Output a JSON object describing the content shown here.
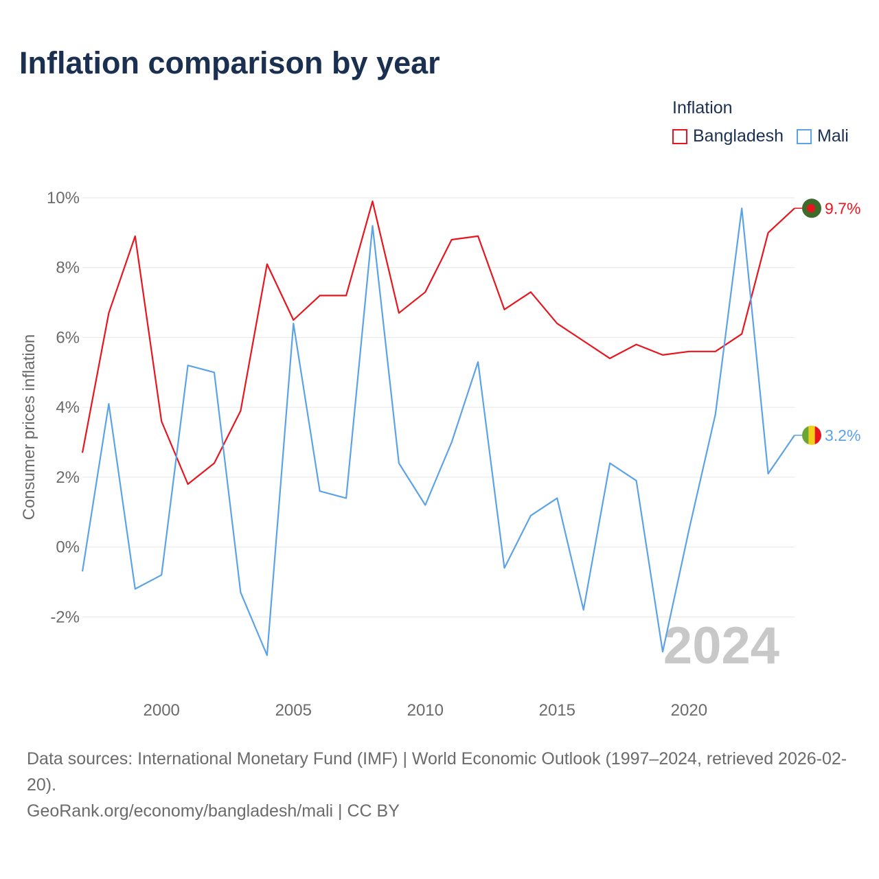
{
  "title": "Inflation comparison by year",
  "legend": {
    "title": "Inflation",
    "items": [
      {
        "label": "Bangladesh",
        "color": "#e8141e"
      },
      {
        "label": "Mali",
        "color": "#5ba3e6"
      }
    ]
  },
  "footer": {
    "sources": "Data sources: International Monetary Fund (IMF) | World Economic Outlook (1997–2024, retrieved 2026-02-20).",
    "credit": "GeoRank.org/economy/bangladesh/mali | CC BY"
  },
  "chart_data": {
    "type": "line",
    "title": "Inflation comparison by year",
    "ylabel": "Consumer prices inflation",
    "xlabel": "",
    "year_watermark": "2024",
    "x": [
      1997,
      1998,
      1999,
      2000,
      2001,
      2002,
      2003,
      2004,
      2005,
      2006,
      2007,
      2008,
      2009,
      2010,
      2011,
      2012,
      2013,
      2014,
      2015,
      2016,
      2017,
      2018,
      2019,
      2020,
      2021,
      2022,
      2023,
      2024
    ],
    "xlim": [
      1997,
      2024
    ],
    "ylim": [
      -4,
      10
    ],
    "xticks": [
      2000,
      2005,
      2010,
      2015,
      2020
    ],
    "xtick_labels": [
      "2000",
      "2005",
      "2010",
      "2015",
      "2020"
    ],
    "yticks": [
      -2,
      0,
      2,
      4,
      6,
      8,
      10
    ],
    "ytick_labels": [
      "-2%",
      "0%",
      "2%",
      "4%",
      "6%",
      "8%",
      "10%"
    ],
    "grid": true,
    "legend_position": "top-right",
    "series": [
      {
        "name": "Bangladesh",
        "color": "#e8141e",
        "values": [
          2.7,
          6.7,
          8.9,
          3.6,
          1.8,
          2.4,
          3.9,
          8.1,
          6.5,
          7.2,
          7.2,
          9.9,
          6.7,
          7.3,
          8.8,
          8.9,
          6.8,
          7.3,
          6.4,
          5.9,
          5.4,
          5.8,
          5.5,
          5.6,
          5.6,
          6.1,
          9.0,
          9.7
        ],
        "end_label": "9.7%",
        "flag": "bangladesh"
      },
      {
        "name": "Mali",
        "color": "#5ba3e6",
        "values": [
          -0.7,
          4.1,
          -1.2,
          -0.8,
          5.2,
          5.0,
          -1.3,
          -3.1,
          6.4,
          1.6,
          1.4,
          9.2,
          2.4,
          1.2,
          3.0,
          5.3,
          -0.6,
          0.9,
          1.4,
          -1.8,
          2.4,
          1.9,
          -3.0,
          0.5,
          3.8,
          9.7,
          2.1,
          3.2
        ],
        "end_label": "3.2%",
        "flag": "mali"
      }
    ]
  }
}
